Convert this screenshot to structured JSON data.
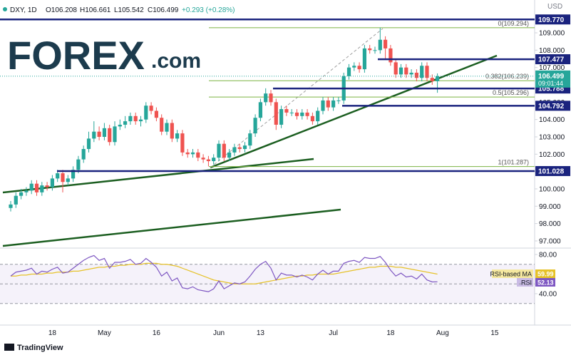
{
  "header": {
    "symbol": "DXY, 1D",
    "ohlc": [
      "O106.208",
      "H106.661",
      "L105.542",
      "C106.499"
    ],
    "change": "+0.293 (+0.28%)",
    "currency": "USD",
    "countdown": "09:01:44"
  },
  "logo": {
    "brand": "FOREX",
    "suffix": ".com"
  },
  "footer": {
    "brand": "TradingView"
  },
  "chart_data": [
    {
      "type": "candlestick",
      "categories": [
        null,
        null,
        null,
        null,
        null,
        null,
        null,
        null,
        "18",
        null,
        null,
        null,
        null,
        null,
        null,
        null,
        null,
        null,
        "May",
        null,
        null,
        null,
        null,
        null,
        null,
        null,
        null,
        null,
        "16",
        null,
        null,
        null,
        null,
        null,
        null,
        null,
        null,
        null,
        null,
        null,
        "Jun",
        null,
        null,
        null,
        null,
        null,
        null,
        null,
        "13",
        null,
        null,
        null,
        null,
        null,
        null,
        null,
        null,
        null,
        null,
        null,
        null,
        null,
        "Jul",
        null,
        null,
        null,
        null,
        null,
        null,
        null,
        null,
        null,
        null,
        "18",
        null,
        null,
        null,
        null,
        null,
        null,
        null,
        null,
        null,
        "Aug",
        null,
        null,
        null,
        null,
        null,
        null,
        null,
        null,
        null,
        "15",
        null,
        null,
        null,
        null
      ],
      "open": [
        98.9,
        99.1,
        99.6,
        99.8,
        99.9,
        100.3,
        99.8,
        100.2,
        100.1,
        100.6,
        100.9,
        100.4,
        100.6,
        101.1,
        101.7,
        102.3,
        102.9,
        103.3,
        103.0,
        103.5,
        102.7,
        103.6,
        103.7,
        103.9,
        104.2,
        103.9,
        104.0,
        104.8,
        104.5,
        104.1,
        103.3,
        103.8,
        102.9,
        103.2,
        102.1,
        102.0,
        102.1,
        101.8,
        101.7,
        101.6,
        101.8,
        102.6,
        101.8,
        102.1,
        102.4,
        102.3,
        102.5,
        103.2,
        104.1,
        105.0,
        105.5,
        105.0,
        103.7,
        104.6,
        104.4,
        104.4,
        104.2,
        104.4,
        104.2,
        103.9,
        104.5,
        105.1,
        104.7,
        105.1,
        105.1,
        106.5,
        107.0,
        107.1,
        106.9,
        108.1,
        108.0,
        108.0,
        108.6,
        108.1,
        107.3,
        106.6,
        107.0,
        106.6,
        106.7,
        106.4,
        107.1,
        106.4,
        106.208,
        null,
        null,
        null,
        null,
        null,
        null,
        null,
        null,
        null,
        null,
        null,
        null,
        null,
        null,
        null
      ],
      "high": [
        99.3,
        99.8,
        100.0,
        100.1,
        100.5,
        100.5,
        100.4,
        100.4,
        100.8,
        101.1,
        101.1,
        100.8,
        101.3,
        101.9,
        102.5,
        103.3,
        103.9,
        103.6,
        103.8,
        103.7,
        103.9,
        104.0,
        104.2,
        104.4,
        104.4,
        104.2,
        105.0,
        105.0,
        104.7,
        104.3,
        104.0,
        104.0,
        103.4,
        103.4,
        102.3,
        102.3,
        102.3,
        102.0,
        101.9,
        102.0,
        102.8,
        102.8,
        102.3,
        102.6,
        102.6,
        102.7,
        103.4,
        104.3,
        105.2,
        105.8,
        105.7,
        105.2,
        104.8,
        104.8,
        104.6,
        104.6,
        104.6,
        104.6,
        104.4,
        104.7,
        105.3,
        105.3,
        105.3,
        105.3,
        106.7,
        107.2,
        107.3,
        107.3,
        108.3,
        108.3,
        108.2,
        109.294,
        108.8,
        108.3,
        107.5,
        107.2,
        107.2,
        106.9,
        106.9,
        107.3,
        107.3,
        106.6,
        106.661,
        null,
        null,
        null,
        null,
        null,
        null,
        null,
        null,
        null,
        null,
        null,
        null,
        null,
        null,
        null
      ],
      "low": [
        98.7,
        98.9,
        99.4,
        99.6,
        99.7,
        99.6,
        99.6,
        99.9,
        99.9,
        100.4,
        99.8,
        100.2,
        100.4,
        100.9,
        101.5,
        102.1,
        102.7,
        102.8,
        102.8,
        102.5,
        102.5,
        103.4,
        103.5,
        103.7,
        103.7,
        103.6,
        103.8,
        104.3,
        103.9,
        103.1,
        103.1,
        102.7,
        102.7,
        101.9,
        101.8,
        101.8,
        101.6,
        101.5,
        101.3,
        101.4,
        101.6,
        101.6,
        101.6,
        101.9,
        102.1,
        102.1,
        102.3,
        103.0,
        103.9,
        104.8,
        104.8,
        103.4,
        103.5,
        104.2,
        104.2,
        104.0,
        104.0,
        104.0,
        103.7,
        103.7,
        104.3,
        104.5,
        104.5,
        104.9,
        104.9,
        106.3,
        106.8,
        106.7,
        106.7,
        107.8,
        107.8,
        107.8,
        107.5,
        107.1,
        106.4,
        106.4,
        106.4,
        106.4,
        106.2,
        106.2,
        106.2,
        106.0,
        105.542,
        null,
        null,
        null,
        null,
        null,
        null,
        null,
        null,
        null,
        null,
        null,
        null,
        null,
        null,
        null
      ],
      "close": [
        99.1,
        99.6,
        99.8,
        99.9,
        100.3,
        99.8,
        100.2,
        100.1,
        100.6,
        100.9,
        100.4,
        100.6,
        101.1,
        101.7,
        102.3,
        102.9,
        103.3,
        103.0,
        103.5,
        102.7,
        103.6,
        103.7,
        103.9,
        104.2,
        103.9,
        104.0,
        104.8,
        104.5,
        104.1,
        103.3,
        103.8,
        102.9,
        103.2,
        102.1,
        102.0,
        102.1,
        101.8,
        101.7,
        101.6,
        101.8,
        102.6,
        101.8,
        102.1,
        102.4,
        102.3,
        102.5,
        103.2,
        104.1,
        105.0,
        105.5,
        105.0,
        103.7,
        104.6,
        104.4,
        104.4,
        104.2,
        104.4,
        104.2,
        103.9,
        104.5,
        105.1,
        104.7,
        105.1,
        105.1,
        106.5,
        107.0,
        107.1,
        106.9,
        108.1,
        108.0,
        108.0,
        108.6,
        108.1,
        107.3,
        106.6,
        107.0,
        106.6,
        106.7,
        106.4,
        107.1,
        106.4,
        106.21,
        106.499,
        null,
        null,
        null,
        null,
        null,
        null,
        null,
        null,
        null,
        null,
        null,
        null,
        null,
        null,
        null
      ],
      "up_color": "#26a69a",
      "down_color": "#ef5350",
      "ylim": [
        96.71,
        110.07
      ],
      "yticks": [
        {
          "value": 97,
          "label": "97.000"
        },
        {
          "value": 98,
          "label": "98.000"
        },
        {
          "value": 99,
          "label": "99.000"
        },
        {
          "value": 100,
          "label": "100.000"
        },
        {
          "value": 101,
          "label": "101.000"
        },
        {
          "value": 102,
          "label": "102.000"
        },
        {
          "value": 103,
          "label": "103.000"
        },
        {
          "value": 104,
          "label": "104.000"
        },
        {
          "value": 105,
          "label": "105.000"
        },
        {
          "value": 107,
          "label": "107.000"
        },
        {
          "value": 108,
          "label": "108.000"
        },
        {
          "value": 109,
          "label": "109.000"
        }
      ],
      "levels": [
        {
          "value": 109.77,
          "label": "109.770"
        },
        {
          "value": 107.477,
          "label": "107.477"
        },
        {
          "value": 105.788,
          "label": "105.788"
        },
        {
          "value": 104.792,
          "label": "104.792"
        },
        {
          "value": 101.028,
          "label": "101.028"
        }
      ],
      "level_color": "#1a237e",
      "fib_levels": [
        {
          "value": 109.294,
          "label": "0(109.294)"
        },
        {
          "value": 106.239,
          "label": "0.382(106.239)"
        },
        {
          "value": 105.296,
          "label": "0.5(105.296)"
        },
        {
          "value": 101.287,
          "label": "1(101.287)"
        }
      ],
      "fib_color": "#7cb342"
    },
    {
      "type": "line",
      "series": [
        {
          "name": "RSI-based MA",
          "color": "#e6c229",
          "values": [
            58,
            58,
            59,
            59,
            60,
            60,
            60,
            61,
            61,
            62,
            62,
            62,
            63,
            63,
            64,
            65,
            66,
            67,
            67,
            68,
            68,
            69,
            69,
            70,
            70,
            70,
            71,
            71,
            71,
            70,
            70,
            69,
            68,
            66,
            64,
            62,
            60,
            58,
            56,
            54,
            53,
            52,
            51,
            50,
            50,
            50,
            50,
            50,
            51,
            52,
            53,
            54,
            55,
            56,
            57,
            58,
            58,
            59,
            59,
            60,
            60,
            60,
            60,
            61,
            62,
            63,
            64,
            65,
            66,
            67,
            67,
            68,
            68,
            68,
            67,
            67,
            66,
            65,
            64,
            63,
            62,
            61,
            59.99
          ]
        },
        {
          "name": "RSI",
          "color": "#7e57c2",
          "values": [
            58,
            62,
            63,
            64,
            66,
            60,
            63,
            62,
            65,
            67,
            61,
            62,
            66,
            70,
            74,
            77,
            79,
            74,
            76,
            66,
            72,
            72,
            73,
            75,
            70,
            71,
            76,
            72,
            67,
            58,
            62,
            53,
            56,
            46,
            45,
            47,
            44,
            43,
            42,
            45,
            53,
            45,
            48,
            51,
            50,
            52,
            58,
            65,
            70,
            73,
            66,
            54,
            61,
            59,
            59,
            57,
            59,
            57,
            54,
            60,
            64,
            60,
            63,
            63,
            71,
            73,
            74,
            72,
            77,
            76,
            76,
            78,
            72,
            64,
            58,
            61,
            57,
            58,
            55,
            60,
            54,
            52,
            52.13
          ]
        }
      ],
      "ylim": [
        8.7,
        85.1
      ],
      "yticks": [
        {
          "value": 80,
          "label": "80.00"
        },
        {
          "value": 40,
          "label": "40.00"
        }
      ],
      "band": [
        30,
        70
      ],
      "midline": 50
    }
  ]
}
